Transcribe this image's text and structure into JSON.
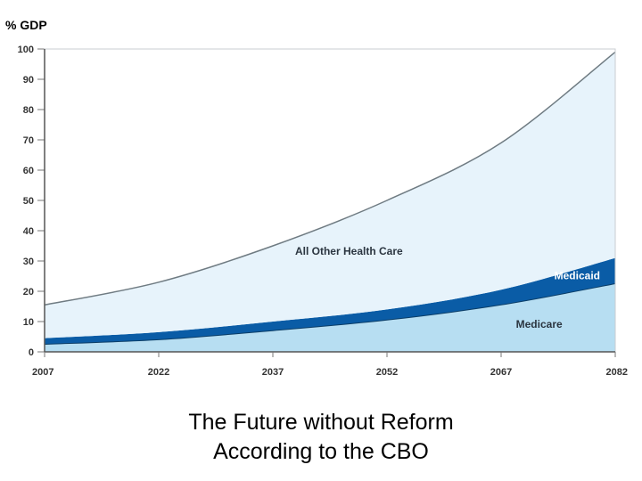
{
  "unit_label": "% GDP",
  "caption": {
    "line1": "The Future without Reform",
    "line2": "According to the CBO"
  },
  "colors": {
    "medicare": "#b7def2",
    "medicaid": "#0a5ca6",
    "other": "#e7f3fb",
    "total_line": "#6f7b82",
    "label_dark": "#2b3540",
    "label_light": "#ffffff"
  },
  "chart_data": {
    "type": "area",
    "stacked": true,
    "xlim": [
      2007,
      2082
    ],
    "ylim": [
      0,
      100
    ],
    "x_ticks": [
      "2007",
      "2022",
      "2037",
      "2052",
      "2067",
      "2082"
    ],
    "y_ticks": [
      "0",
      "10",
      "20",
      "30",
      "40",
      "50",
      "60",
      "70",
      "80",
      "90",
      "100"
    ],
    "x": [
      2007,
      2022,
      2037,
      2052,
      2067,
      2082
    ],
    "series": [
      {
        "name": "Medicare",
        "values": [
          2.5,
          4,
          7,
          10.5,
          15.5,
          22.5
        ]
      },
      {
        "name": "Medicaid",
        "values": [
          2,
          2.5,
          3,
          3.5,
          5,
          8.5
        ]
      },
      {
        "name": "All Other Health Care",
        "values": [
          11,
          16.5,
          25,
          36,
          48.5,
          68
        ]
      }
    ],
    "grid": false
  }
}
